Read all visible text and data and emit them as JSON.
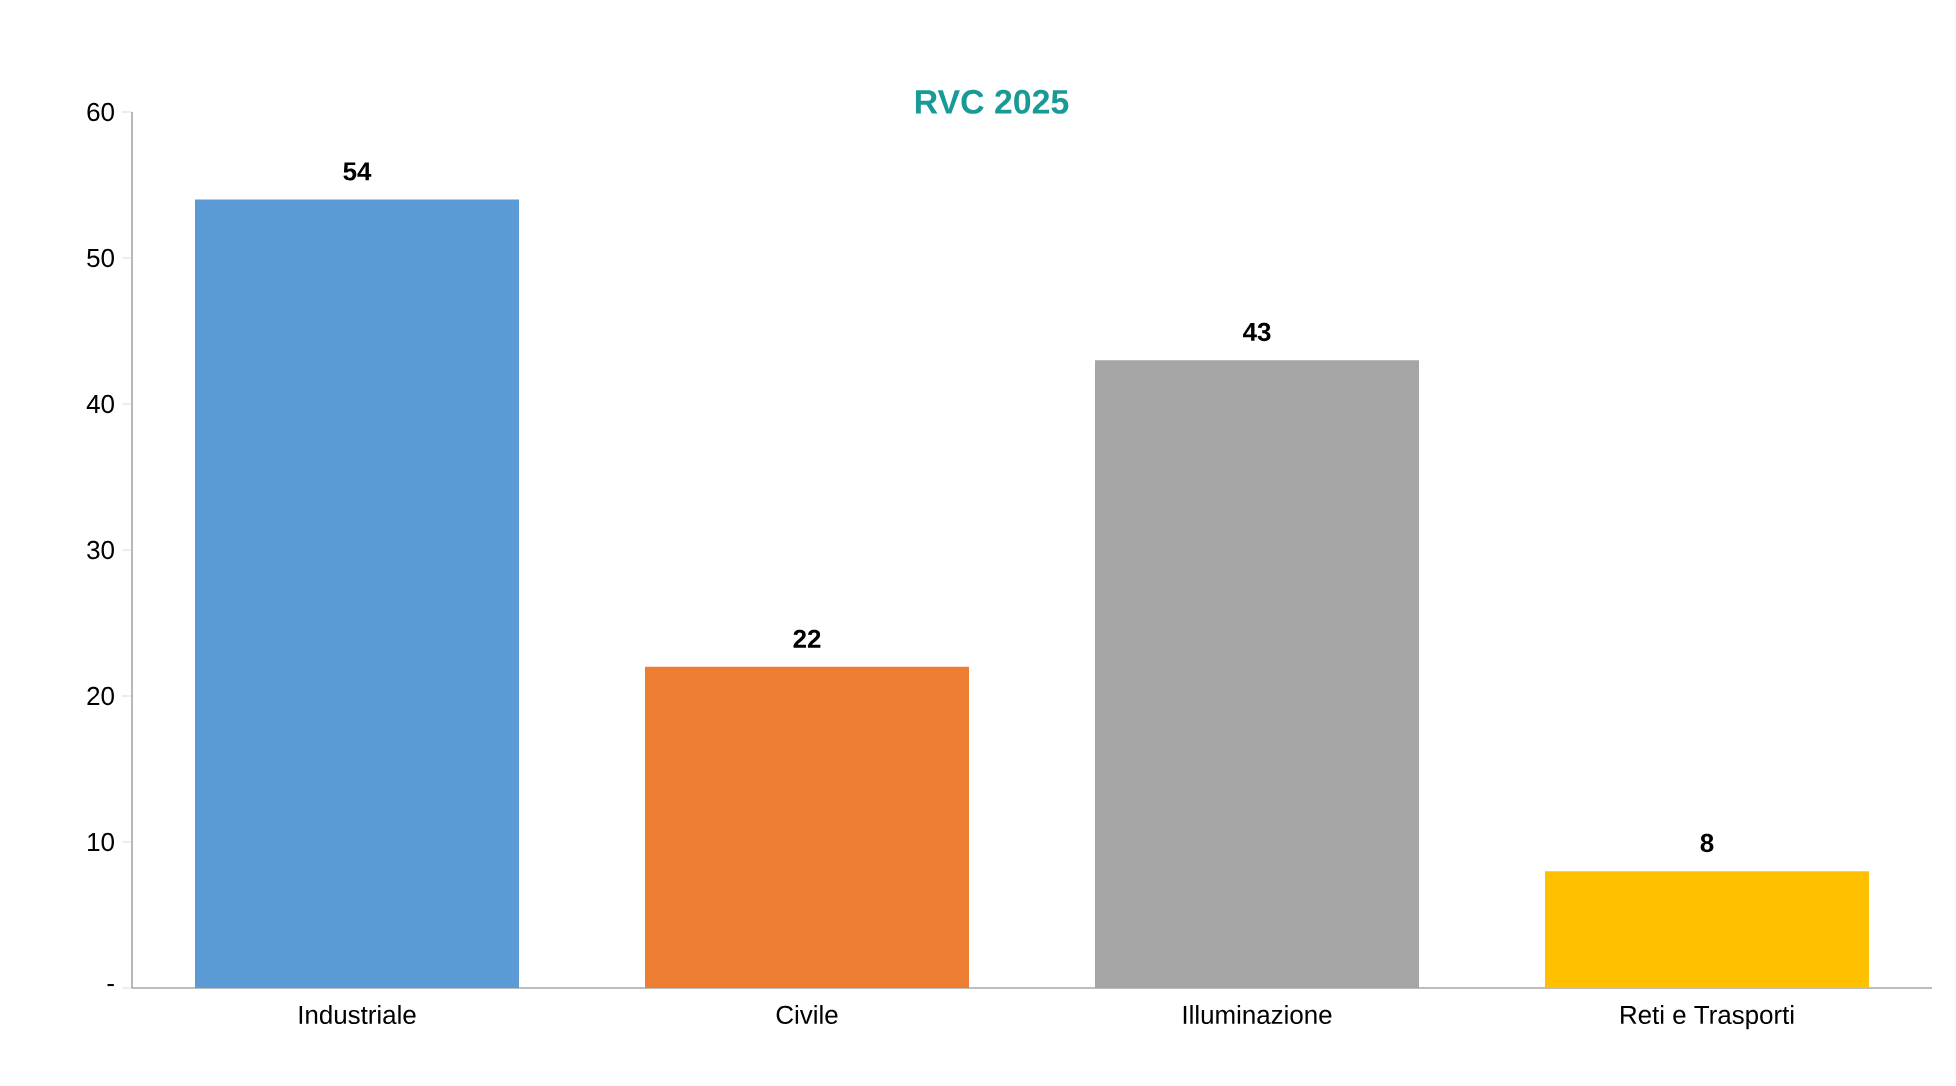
{
  "chart_data": {
    "type": "bar",
    "title": "RVC 2025",
    "categories": [
      "Industriale",
      "Civile",
      "Illuminazione",
      "Reti e Trasporti"
    ],
    "values": [
      54,
      22,
      43,
      8
    ],
    "colors": [
      "#5b9bd5",
      "#ed7d31",
      "#a5a5a5",
      "#ffc000"
    ],
    "ylim": [
      0,
      60
    ],
    "yticks": [
      {
        "value": 0,
        "label": "-"
      },
      10,
      20,
      30,
      40,
      50,
      60
    ],
    "data_labels": true
  }
}
